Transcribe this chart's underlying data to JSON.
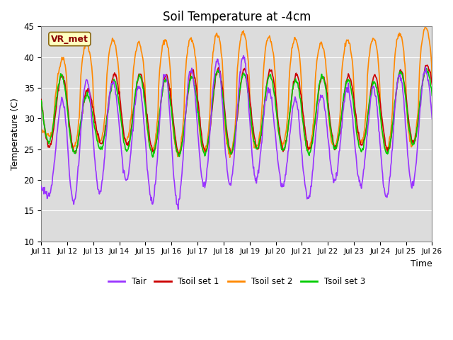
{
  "title": "Soil Temperature at -4cm",
  "xlabel": "Time",
  "ylabel": "Temperature (C)",
  "ylim": [
    10,
    45
  ],
  "colors": {
    "Tair": "#9933FF",
    "Tsoil_set1": "#CC0000",
    "Tsoil_set2": "#FF8800",
    "Tsoil_set3": "#00CC00"
  },
  "legend_labels": [
    "Tair",
    "Tsoil set 1",
    "Tsoil set 2",
    "Tsoil set 3"
  ],
  "annotation_text": "VR_met",
  "background_color": "#DCDCDC",
  "grid_color": "#FFFFFF",
  "title_fontsize": 12,
  "xtick_labels": [
    "Jul 11",
    "Jul 12",
    "Jul 13",
    "Jul 14",
    "Jul 15",
    "Jul 16",
    "Jul 17",
    "Jul 18",
    "Jul 19",
    "Jul 20",
    "Jul 21",
    "Jul 22",
    "Jul 23",
    "Jul 24",
    "Jul 25",
    "Jul 26"
  ],
  "ytick_values": [
    10,
    15,
    20,
    25,
    30,
    35,
    40,
    45
  ]
}
